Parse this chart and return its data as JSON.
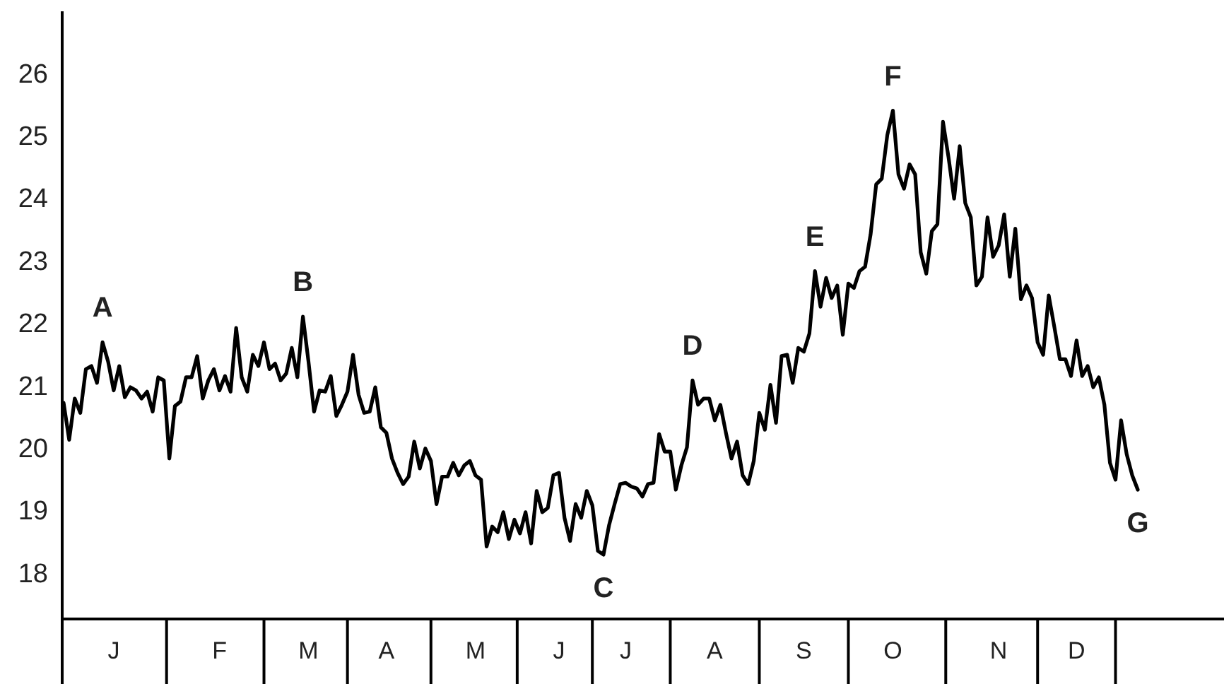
{
  "chart_data": {
    "type": "line",
    "ylim": [
      17.27,
      27
    ],
    "yticks": [
      18,
      19,
      20,
      21,
      22,
      23,
      24,
      25,
      26
    ],
    "categories": [
      null,
      null,
      null,
      null,
      null,
      null,
      null,
      null,
      null,
      "J",
      null,
      null,
      null,
      null,
      null,
      null,
      null,
      null,
      null,
      null,
      null,
      null,
      null,
      null,
      null,
      null,
      null,
      null,
      "F",
      null,
      null,
      null,
      null,
      null,
      null,
      null,
      null,
      null,
      null,
      null,
      null,
      null,
      null,
      null,
      "M",
      null,
      null,
      null,
      null,
      null,
      null,
      null,
      null,
      null,
      null,
      null,
      null,
      null,
      "A",
      null,
      null,
      null,
      null,
      null,
      null,
      null,
      null,
      null,
      null,
      null,
      null,
      null,
      null,
      null,
      "M",
      null,
      null,
      null,
      null,
      null,
      null,
      null,
      null,
      null,
      null,
      null,
      null,
      null,
      null,
      "J",
      null,
      null,
      null,
      null,
      null,
      null,
      null,
      null,
      null,
      null,
      null,
      "J",
      null,
      null,
      null,
      null,
      null,
      null,
      null,
      null,
      null,
      null,
      null,
      null,
      null,
      null,
      null,
      "A",
      null,
      null,
      null,
      null,
      null,
      null,
      null,
      null,
      null,
      null,
      null,
      null,
      null,
      null,
      null,
      "S",
      null,
      null,
      null,
      null,
      null,
      null,
      null,
      null,
      null,
      null,
      null,
      null,
      null,
      null,
      null,
      "O",
      null,
      null,
      null,
      null,
      null,
      null,
      null,
      null,
      null,
      null,
      null,
      null,
      null,
      null,
      null,
      null,
      null,
      null,
      "N",
      null,
      null,
      null,
      null,
      null,
      null,
      null,
      null,
      null,
      null,
      null,
      null,
      null,
      "D",
      null,
      null,
      null,
      null,
      null,
      null,
      null,
      null,
      null,
      null,
      null
    ],
    "grid": false,
    "marker": "none",
    "line_style": "solid",
    "annotations": [
      {
        "text": "A",
        "y": 21.7
      },
      {
        "text": "B",
        "y": 22.11
      },
      {
        "text": "C",
        "y": 18.3
      },
      {
        "text": "D",
        "y": 21.09
      },
      {
        "text": "E",
        "y": 22.84
      },
      {
        "text": "F",
        "y": 25.41
      },
      {
        "text": "G",
        "y": 19.34
      }
    ],
    "series": [
      {
        "color": "#000000",
        "values": [
          20.73,
          20.14,
          20.8,
          20.57,
          21.27,
          21.32,
          21.05,
          21.7,
          21.39,
          20.93,
          21.32,
          20.82,
          20.98,
          20.93,
          20.8,
          20.91,
          20.59,
          21.14,
          21.09,
          19.84,
          20.68,
          20.75,
          21.14,
          21.14,
          21.48,
          20.8,
          21.09,
          21.27,
          20.93,
          21.16,
          20.91,
          21.93,
          21.14,
          20.91,
          21.5,
          21.32,
          21.7,
          21.27,
          21.36,
          21.09,
          21.2,
          21.61,
          21.14,
          22.11,
          21.39,
          20.59,
          20.93,
          20.91,
          21.16,
          20.52,
          20.7,
          20.91,
          21.5,
          20.86,
          20.57,
          20.59,
          20.98,
          20.34,
          20.25,
          19.84,
          19.61,
          19.43,
          19.55,
          20.11,
          19.68,
          20.0,
          19.8,
          19.11,
          19.55,
          19.55,
          19.77,
          19.57,
          19.73,
          19.8,
          19.57,
          19.5,
          18.43,
          18.75,
          18.66,
          18.98,
          18.55,
          18.86,
          18.64,
          18.98,
          18.48,
          19.32,
          18.98,
          19.05,
          19.57,
          19.61,
          18.89,
          18.52,
          19.11,
          18.89,
          19.32,
          19.09,
          18.36,
          18.3,
          18.77,
          19.11,
          19.43,
          19.45,
          19.39,
          19.36,
          19.23,
          19.43,
          19.45,
          20.23,
          19.95,
          19.95,
          19.34,
          19.73,
          20.02,
          21.09,
          20.7,
          20.8,
          20.8,
          20.45,
          20.7,
          20.25,
          19.84,
          20.11,
          19.57,
          19.43,
          19.8,
          20.57,
          20.3,
          21.02,
          20.41,
          21.48,
          21.5,
          21.05,
          21.61,
          21.55,
          21.84,
          22.84,
          22.27,
          22.73,
          22.41,
          22.61,
          21.82,
          22.64,
          22.57,
          22.84,
          22.91,
          23.43,
          24.23,
          24.32,
          25.02,
          25.41,
          24.39,
          24.16,
          24.55,
          24.39,
          23.14,
          22.8,
          23.48,
          23.59,
          25.23,
          24.66,
          24.0,
          24.84,
          23.93,
          23.7,
          22.61,
          22.75,
          23.7,
          23.07,
          23.25,
          23.75,
          22.75,
          23.52,
          22.39,
          22.61,
          22.41,
          21.7,
          21.5,
          22.45,
          21.95,
          21.43,
          21.43,
          21.16,
          21.73,
          21.16,
          21.32,
          20.98,
          21.14,
          20.7,
          19.77,
          19.5,
          20.45,
          19.91,
          19.57,
          19.34
        ]
      }
    ]
  }
}
